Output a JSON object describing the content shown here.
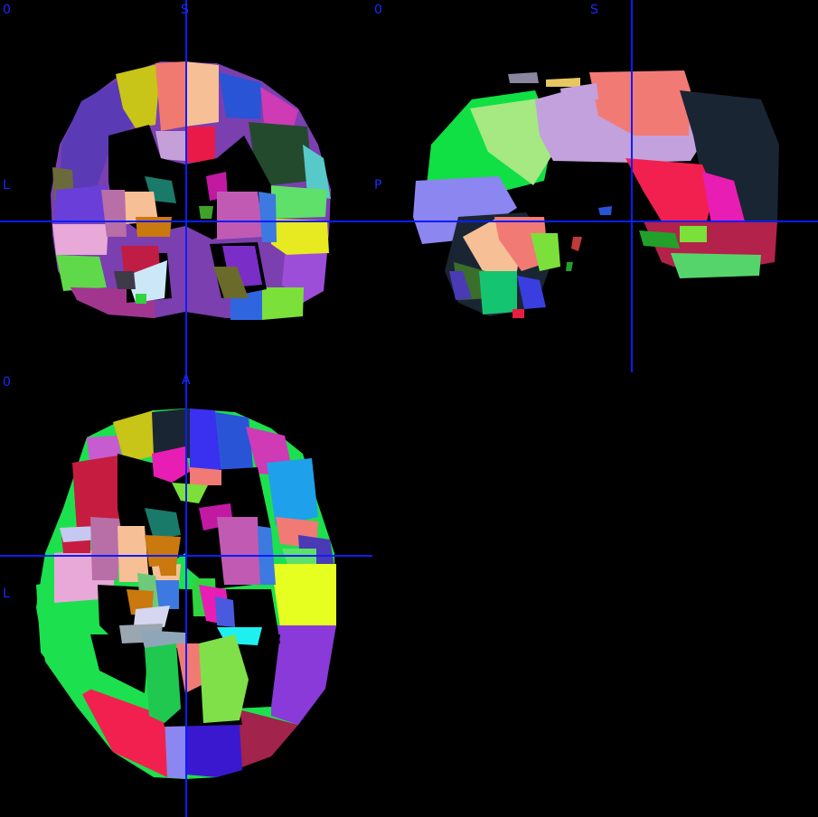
{
  "colors": {
    "background": "#000000",
    "crosshair": "#0a1eff",
    "label": "#1a2bff"
  },
  "coronal": {
    "corner_value": "0",
    "superior_label": "S",
    "left_label": "L"
  },
  "sagittal": {
    "corner_value": "0",
    "superior_label": "S",
    "posterior_label": "P"
  },
  "axial": {
    "corner_value": "0",
    "anterior_label": "A",
    "left_label": "L"
  }
}
